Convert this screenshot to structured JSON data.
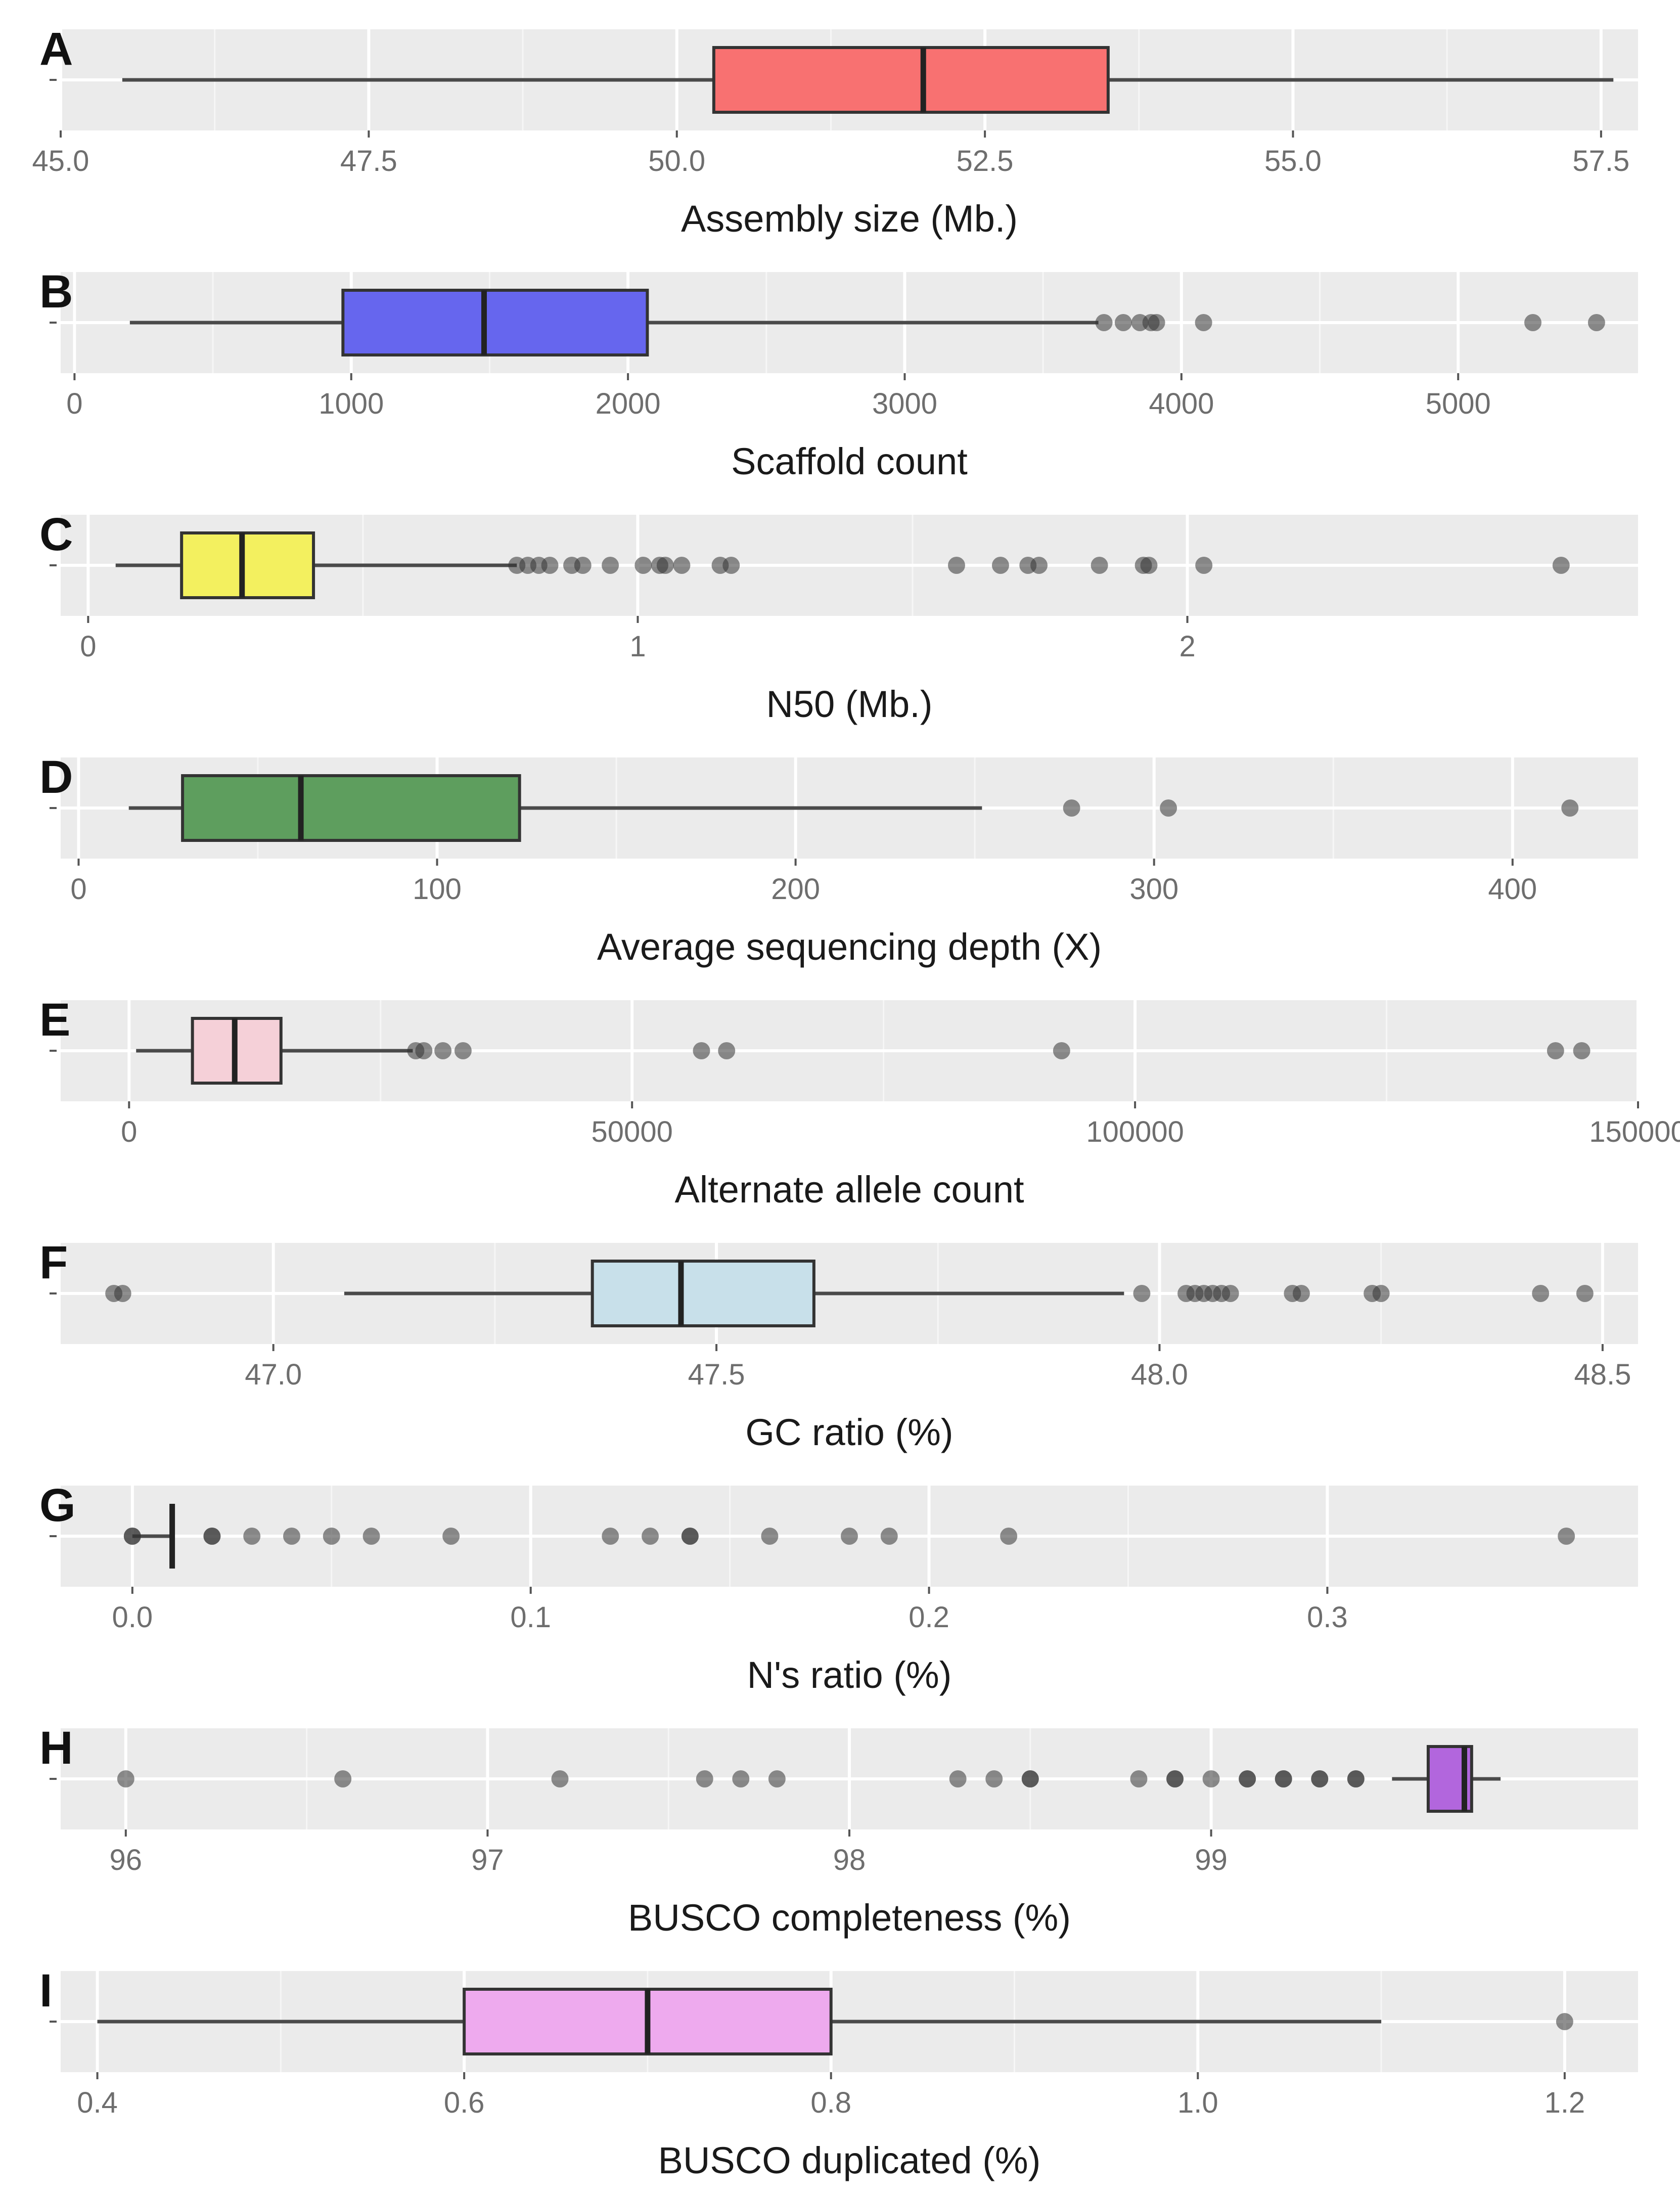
{
  "chart_data": [
    {
      "panel": "A",
      "type": "boxplot",
      "xlabel": "Assembly size  (Mb.)",
      "xlim": [
        45.0,
        57.8
      ],
      "ticks": [
        45.0,
        47.5,
        50.0,
        52.5,
        55.0,
        57.5
      ],
      "tick_labels": [
        "45.0",
        "47.5",
        "50.0",
        "52.5",
        "55.0",
        "57.5"
      ],
      "box": {
        "whisker_low": 45.5,
        "q1": 50.3,
        "median": 52.0,
        "q3": 53.5,
        "whisker_high": 57.6
      },
      "outliers": [],
      "fill": "#f87171"
    },
    {
      "panel": "B",
      "type": "boxplot",
      "xlabel": "Scaffold count",
      "xlim": [
        -50,
        5650
      ],
      "ticks": [
        0,
        1000,
        2000,
        3000,
        4000,
        5000
      ],
      "tick_labels": [
        "0",
        "1000",
        "2000",
        "3000",
        "4000",
        "5000"
      ],
      "box": {
        "whisker_low": 200,
        "q1": 970,
        "median": 1480,
        "q3": 2070,
        "whisker_high": 3700
      },
      "outliers": [
        3720,
        3790,
        3850,
        3890,
        3910,
        4080,
        5270,
        5500
      ],
      "fill": "#6666ee"
    },
    {
      "panel": "C",
      "type": "boxplot",
      "xlabel": "N50  (Mb.)",
      "xlim": [
        -0.05,
        2.82
      ],
      "ticks": [
        0,
        1,
        2
      ],
      "tick_labels": [
        "0",
        "1",
        "2"
      ],
      "box": {
        "whisker_low": 0.05,
        "q1": 0.17,
        "median": 0.28,
        "q3": 0.41,
        "whisker_high": 0.78
      },
      "outliers": [
        0.78,
        0.8,
        0.82,
        0.84,
        0.88,
        0.9,
        0.95,
        1.01,
        1.04,
        1.05,
        1.08,
        1.15,
        1.17,
        1.58,
        1.66,
        1.71,
        1.73,
        1.84,
        1.92,
        1.93,
        2.03,
        2.68
      ],
      "fill": "#f3f05f"
    },
    {
      "panel": "D",
      "type": "boxplot",
      "xlabel": "Average sequencing depth (X)",
      "xlim": [
        -5,
        435
      ],
      "ticks": [
        0,
        100,
        200,
        300,
        400
      ],
      "tick_labels": [
        "0",
        "100",
        "200",
        "300",
        "400"
      ],
      "box": {
        "whisker_low": 14,
        "q1": 29,
        "median": 62,
        "q3": 123,
        "whisker_high": 252
      },
      "outliers": [
        277,
        304,
        416
      ],
      "fill": "#5e9e5e"
    },
    {
      "panel": "E",
      "type": "boxplot",
      "xlabel": "Alternate allele count",
      "xlim": [
        -6800,
        150000
      ],
      "ticks": [
        0,
        50000,
        100000,
        150000
      ],
      "tick_labels": [
        "0",
        "50000",
        "100000",
        "150000"
      ],
      "box": {
        "whisker_low": 700,
        "q1": 6300,
        "median": 10500,
        "q3": 15100,
        "whisker_high": 28200
      },
      "outliers": [
        28500,
        29300,
        31200,
        33200,
        56900,
        59400,
        92700,
        141800,
        144400
      ],
      "fill": "#f5d0d8"
    },
    {
      "panel": "F",
      "type": "boxplot",
      "xlabel": "GC ratio (%)",
      "xlim": [
        46.76,
        48.54
      ],
      "ticks": [
        47.0,
        47.5,
        48.0,
        48.5
      ],
      "tick_labels": [
        "47.0",
        "47.5",
        "48.0",
        "48.5"
      ],
      "box": {
        "whisker_low": 47.08,
        "q1": 47.36,
        "median": 47.46,
        "q3": 47.61,
        "whisker_high": 47.96
      },
      "outliers": [
        46.82,
        46.83,
        47.98,
        48.03,
        48.04,
        48.05,
        48.06,
        48.07,
        48.08,
        48.15,
        48.16,
        48.24,
        48.25,
        48.43,
        48.48
      ],
      "fill": "#c8e0ea"
    },
    {
      "panel": "G",
      "type": "boxplot",
      "xlabel": "N's ratio (%)",
      "xlim": [
        -0.018,
        0.378
      ],
      "ticks": [
        0.0,
        0.1,
        0.2,
        0.3
      ],
      "tick_labels": [
        "0.0",
        "0.1",
        "0.2",
        "0.3"
      ],
      "box": {
        "whisker_low": 0.0,
        "q1": 0.01,
        "median": 0.01,
        "q3": 0.01,
        "whisker_high": 0.01
      },
      "outliers": [
        0.0,
        0.0,
        0.02,
        0.02,
        0.03,
        0.04,
        0.05,
        0.06,
        0.08,
        0.12,
        0.13,
        0.14,
        0.14,
        0.16,
        0.18,
        0.19,
        0.22,
        0.36
      ],
      "fill": "#888888"
    },
    {
      "panel": "H",
      "type": "boxplot",
      "xlabel": "BUSCO completeness (%)",
      "xlim": [
        95.82,
        100.18
      ],
      "ticks": [
        96,
        97,
        98,
        99
      ],
      "tick_labels": [
        "96",
        "97",
        "98",
        "99"
      ],
      "box": {
        "whisker_low": 99.5,
        "q1": 99.6,
        "median": 99.7,
        "q3": 99.72,
        "whisker_high": 99.8
      },
      "outliers": [
        96.0,
        96.6,
        97.2,
        97.6,
        97.7,
        97.8,
        98.3,
        98.4,
        98.5,
        98.5,
        98.8,
        98.9,
        98.9,
        99.0,
        99.1,
        99.1,
        99.2,
        99.2,
        99.3,
        99.3,
        99.4,
        99.4
      ],
      "fill": "#b266dd"
    },
    {
      "panel": "I",
      "type": "boxplot",
      "xlabel": "BUSCO duplicated (%)",
      "xlim": [
        0.38,
        1.24
      ],
      "ticks": [
        0.4,
        0.6,
        0.8,
        1.0,
        1.2
      ],
      "tick_labels": [
        "0.4",
        "0.6",
        "0.8",
        "1.0",
        "1.2"
      ],
      "box": {
        "whisker_low": 0.4,
        "q1": 0.6,
        "median": 0.7,
        "q3": 0.8,
        "whisker_high": 1.1
      },
      "outliers": [
        1.2
      ],
      "fill": "#eeaaee"
    }
  ]
}
